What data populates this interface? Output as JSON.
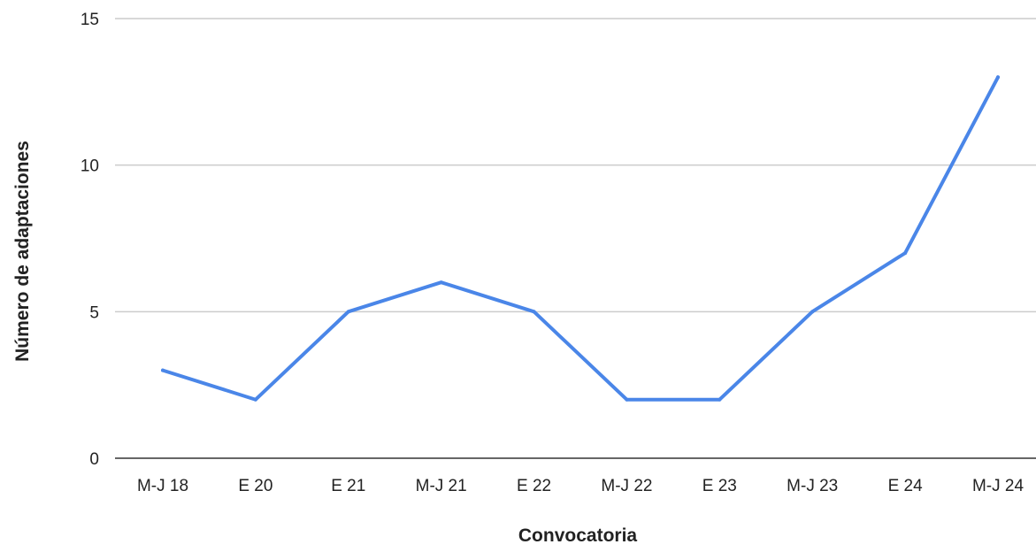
{
  "chart_data": {
    "type": "line",
    "title": "",
    "xlabel": "Convocatoria",
    "ylabel": "Número de adaptaciones",
    "categories": [
      "M-J 18",
      "E 20",
      "E 21",
      "M-J 21",
      "E 22",
      "M-J 22",
      "E 23",
      "M-J 23",
      "E 24",
      "M-J 24"
    ],
    "series": [
      {
        "values": [
          3,
          2,
          5,
          6,
          5,
          2,
          2,
          5,
          7,
          13
        ],
        "color": "#4a86e8"
      }
    ],
    "ylim": [
      0,
      15
    ],
    "yticks": [
      0,
      5,
      10,
      15
    ],
    "grid": true,
    "legend": "none"
  }
}
